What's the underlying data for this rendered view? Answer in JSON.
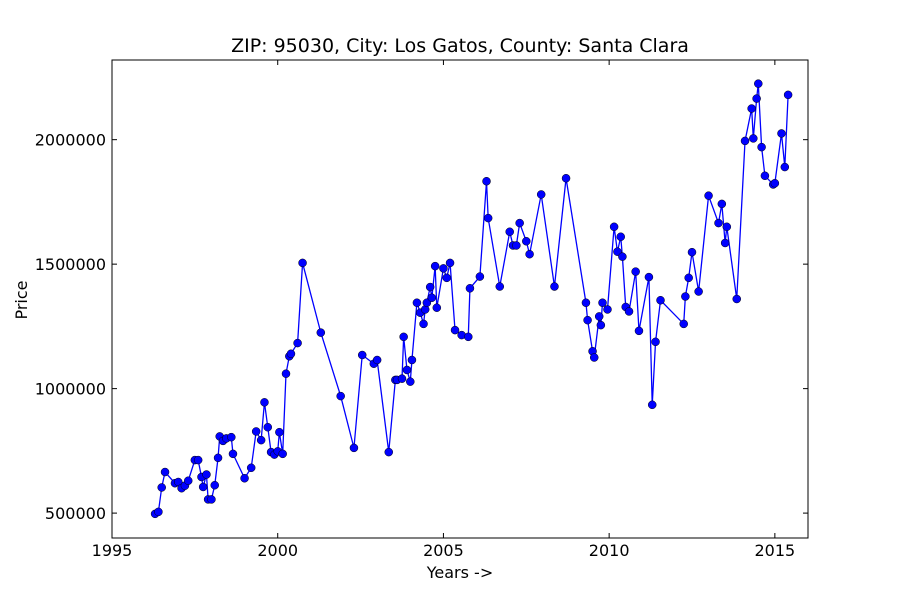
{
  "chart_data": {
    "type": "line",
    "title": "ZIP: 95030, City: Los Gatos, County: Santa Clara",
    "x_label": "Years ->",
    "y_label": "Price",
    "xlim": [
      1995,
      2016
    ],
    "xticks": [
      1995,
      2000,
      2005,
      2010,
      2015
    ],
    "ylim": [
      400000,
      2320000
    ],
    "yticks": [
      500000,
      1000000,
      1500000,
      2000000
    ],
    "series": [
      {
        "name": "Price",
        "color": "#0000ff",
        "x": [
          1996.3,
          1996.4,
          1996.5,
          1996.6,
          1996.9,
          1997.0,
          1997.1,
          1997.2,
          1997.3,
          1997.5,
          1997.6,
          1997.7,
          1997.75,
          1997.85,
          1997.9,
          1998.0,
          1998.1,
          1998.2,
          1998.25,
          1998.35,
          1998.45,
          1998.6,
          1998.65,
          1999.0,
          1999.2,
          1999.35,
          1999.5,
          1999.6,
          1999.7,
          1999.8,
          1999.9,
          2000.0,
          2000.05,
          2000.15,
          2000.25,
          2000.35,
          2000.4,
          2000.6,
          2000.75,
          2001.3,
          2001.9,
          2002.3,
          2002.55,
          2002.9,
          2003.0,
          2003.35,
          2003.55,
          2003.6,
          2003.75,
          2003.8,
          2003.9,
          2004.0,
          2004.05,
          2004.2,
          2004.3,
          2004.4,
          2004.45,
          2004.5,
          2004.6,
          2004.65,
          2004.75,
          2004.8,
          2005.0,
          2005.1,
          2005.2,
          2005.35,
          2005.55,
          2005.75,
          2005.8,
          2006.1,
          2006.3,
          2006.35,
          2006.7,
          2007.0,
          2007.1,
          2007.2,
          2007.3,
          2007.5,
          2007.6,
          2007.95,
          2008.35,
          2008.7,
          2009.3,
          2009.35,
          2009.5,
          2009.55,
          2009.7,
          2009.75,
          2009.8,
          2009.95,
          2010.15,
          2010.25,
          2010.35,
          2010.4,
          2010.5,
          2010.6,
          2010.8,
          2010.9,
          2011.2,
          2011.3,
          2011.4,
          2011.55,
          2012.25,
          2012.3,
          2012.4,
          2012.5,
          2012.7,
          2013.0,
          2013.3,
          2013.4,
          2013.5,
          2013.55,
          2013.85,
          2014.1,
          2014.3,
          2014.35,
          2014.45,
          2014.5,
          2014.6,
          2014.7,
          2014.95,
          2015.0,
          2015.2,
          2015.3,
          2015.4
        ],
        "values": [
          497000,
          505000,
          603000,
          665000,
          620000,
          625000,
          600000,
          610000,
          630000,
          713000,
          713000,
          645000,
          605000,
          655000,
          555000,
          555000,
          612000,
          722000,
          808000,
          790000,
          800000,
          805000,
          738000,
          640000,
          682000,
          828000,
          793000,
          945000,
          845000,
          745000,
          735000,
          748000,
          825000,
          738000,
          1060000,
          1130000,
          1140000,
          1183000,
          1505000,
          1225000,
          970000,
          762000,
          1135000,
          1100000,
          1115000,
          745000,
          1035000,
          1035000,
          1040000,
          1208000,
          1075000,
          1028000,
          1115000,
          1345000,
          1305000,
          1260000,
          1318000,
          1345000,
          1408000,
          1365000,
          1492000,
          1325000,
          1483000,
          1445000,
          1505000,
          1235000,
          1215000,
          1208000,
          1403000,
          1450000,
          1833000,
          1685000,
          1410000,
          1630000,
          1575000,
          1575000,
          1665000,
          1592000,
          1540000,
          1780000,
          1410000,
          1845000,
          1345000,
          1275000,
          1150000,
          1125000,
          1290000,
          1255000,
          1345000,
          1318000,
          1650000,
          1550000,
          1610000,
          1530000,
          1328000,
          1310000,
          1470000,
          1232000,
          1448000,
          935000,
          1188000,
          1355000,
          1260000,
          1370000,
          1445000,
          1548000,
          1390000,
          1775000,
          1665000,
          1742000,
          1585000,
          1650000,
          1360000,
          1995000,
          2125000,
          2005000,
          2165000,
          2225000,
          1970000,
          1855000,
          1820000,
          1825000,
          2025000,
          1890000,
          2180000
        ]
      }
    ]
  }
}
